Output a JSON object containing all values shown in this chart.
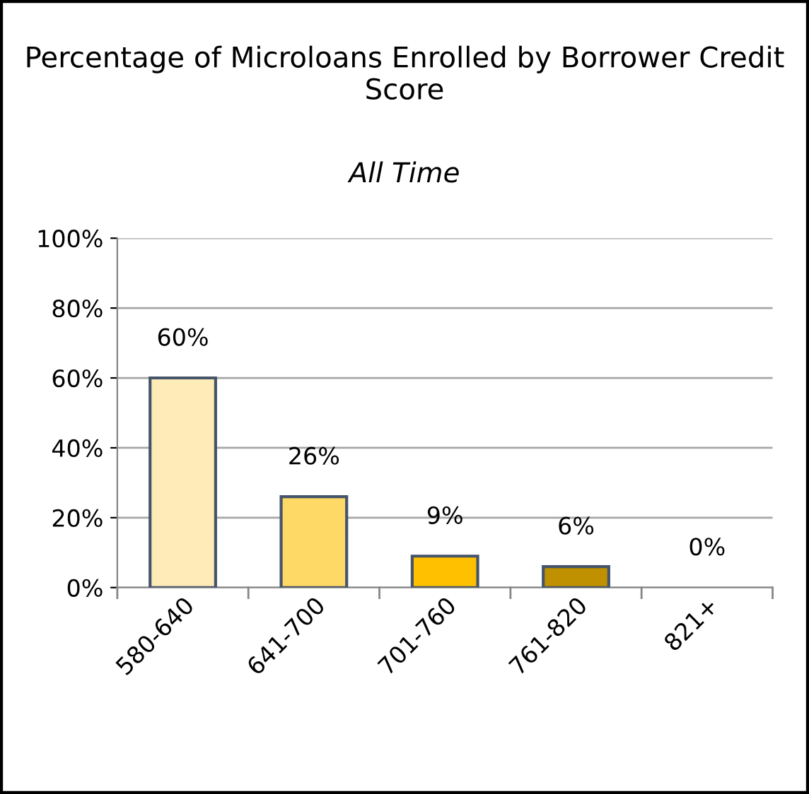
{
  "chart_data": {
    "type": "bar",
    "title": "Percentage of Microloans Enrolled by Borrower Credit Score",
    "subtitle": "All Time",
    "categories": [
      "580-640",
      "641-700",
      "701-760",
      "761-820",
      "821+"
    ],
    "values": [
      60,
      26,
      9,
      6,
      0
    ],
    "colors": [
      "#ffebb7",
      "#ffd966",
      "#ffc000",
      "#bf9000",
      "#7f6000"
    ],
    "value_labels": [
      "60%",
      "26%",
      "9%",
      "6%",
      "0%"
    ],
    "ylim": [
      0,
      100
    ],
    "yticks": [
      {
        "value": 0,
        "label": "0%"
      },
      {
        "value": 20,
        "label": "20%"
      },
      {
        "value": 40,
        "label": "40%"
      },
      {
        "value": 60,
        "label": "60%"
      },
      {
        "value": 80,
        "label": "80%"
      },
      {
        "value": 100,
        "label": "100%"
      }
    ],
    "grid": "y"
  }
}
